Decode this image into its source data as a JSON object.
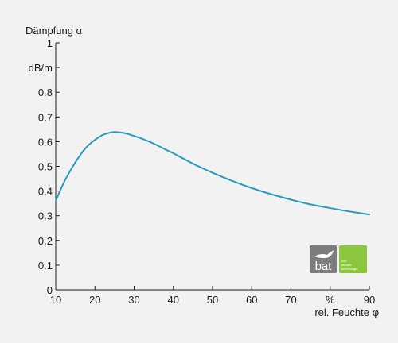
{
  "chart_data": {
    "type": "line",
    "title": "",
    "ylabel": "Dämpfung α",
    "yunit": "dB/m",
    "xlabel": "rel. Feuchte φ",
    "xunit": "%",
    "xlim": [
      10,
      90
    ],
    "ylim": [
      0,
      1
    ],
    "xticks": [
      "10",
      "20",
      "30",
      "40",
      "50",
      "60",
      "70",
      "%",
      "90"
    ],
    "yticks": [
      "0",
      "0.1",
      "0.2",
      "0.3",
      "0.4",
      "0.5",
      "0.6",
      "0.7",
      "0.8",
      "dB/m",
      "1"
    ],
    "grid": false,
    "series": [
      {
        "color": "#2a9bbf",
        "x": [
          10,
          12,
          14,
          16,
          18,
          20,
          22,
          24,
          25,
          26,
          28,
          30,
          32,
          35,
          38,
          40,
          45,
          50,
          55,
          60,
          65,
          70,
          75,
          80,
          85,
          90
        ],
        "y": [
          0.36,
          0.432,
          0.49,
          0.54,
          0.58,
          0.607,
          0.627,
          0.637,
          0.639,
          0.638,
          0.633,
          0.623,
          0.612,
          0.592,
          0.568,
          0.553,
          0.511,
          0.474,
          0.441,
          0.412,
          0.387,
          0.365,
          0.346,
          0.331,
          0.317,
          0.305
        ]
      }
    ]
  },
  "logo": {
    "word": "bat",
    "lines": [
      "bau",
      "akustik",
      "technologie"
    ],
    "gray": "#7d7d7d",
    "green": "#8cc63f"
  }
}
